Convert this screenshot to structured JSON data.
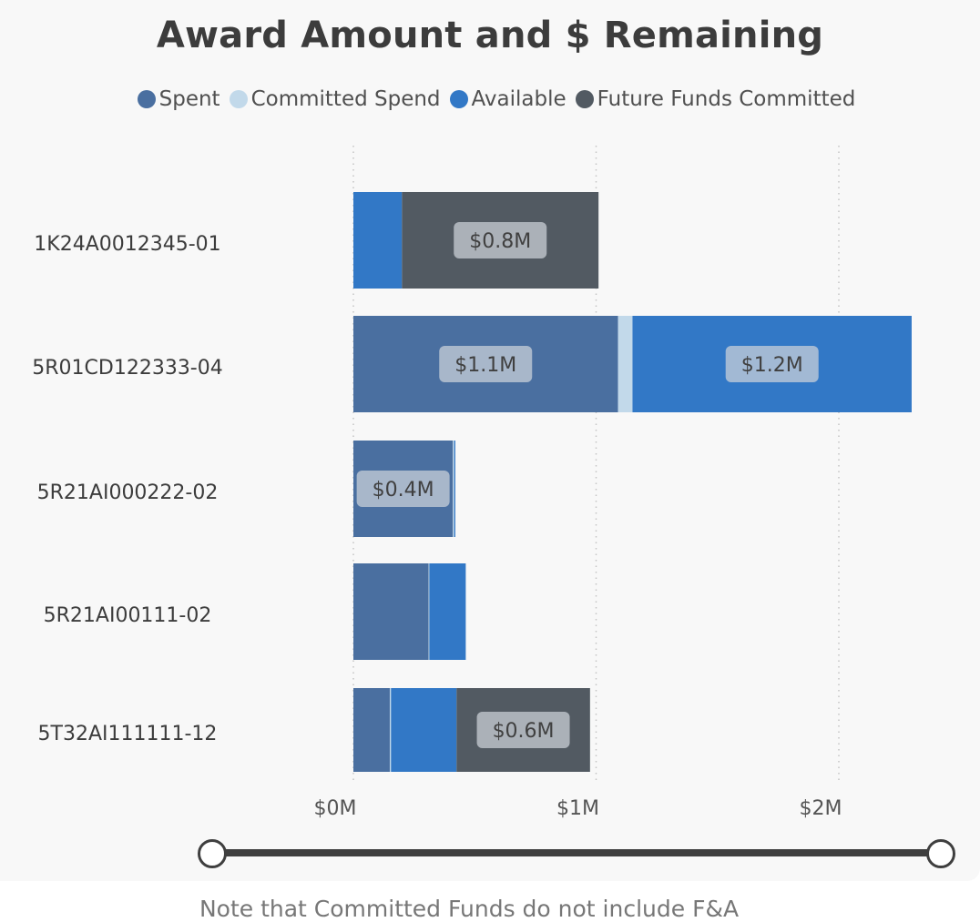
{
  "chart_data": {
    "type": "bar",
    "orientation": "horizontal",
    "stacked": true,
    "title": "Award Amount and $ Remaining",
    "categories": [
      "1K24A0012345-01",
      "5R01CD122333-04",
      "5R21AI000222-02",
      "5R21AI00111-02",
      "5T32AI111111-12"
    ],
    "series": [
      {
        "name": "Spent",
        "color": "#4a6fa0",
        "values": [
          0,
          1.09,
          0.41,
          0.31,
          0.15
        ]
      },
      {
        "name": "Committed Spend",
        "color": "#c2d9ea",
        "values": [
          0,
          0.06,
          0.005,
          0.003,
          0.005
        ]
      },
      {
        "name": "Available",
        "color": "#3278c6",
        "values": [
          0.2,
          1.15,
          0.005,
          0.15,
          0.27
        ]
      },
      {
        "name": "Future Funds Committed",
        "color": "#525a62",
        "values": [
          0.81,
          0,
          0,
          0,
          0.55
        ]
      }
    ],
    "data_labels": [
      {
        "category": "1K24A0012345-01",
        "series": "Future Funds Committed",
        "text": "$0.8M"
      },
      {
        "category": "5R01CD122333-04",
        "series": "Spent",
        "text": "$1.1M"
      },
      {
        "category": "5R01CD122333-04",
        "series": "Available",
        "text": "$1.2M"
      },
      {
        "category": "5R21AI000222-02",
        "series": "Spent",
        "text": "$0.4M"
      },
      {
        "category": "5T32AI111111-12",
        "series": "Future Funds Committed",
        "text": "$0.6M"
      }
    ],
    "x_axis": {
      "ticks": [
        0,
        1,
        2
      ],
      "tick_labels": [
        "$0M",
        "$1M",
        "$2M"
      ],
      "unit": "millions USD"
    },
    "xlim": [
      0,
      2.4
    ],
    "grid": "vertical dotted",
    "legend_position": "top-center"
  },
  "note": "Note that Committed Funds do not include F&A",
  "range_slider": {
    "start_fraction": 0,
    "end_fraction": 1
  }
}
